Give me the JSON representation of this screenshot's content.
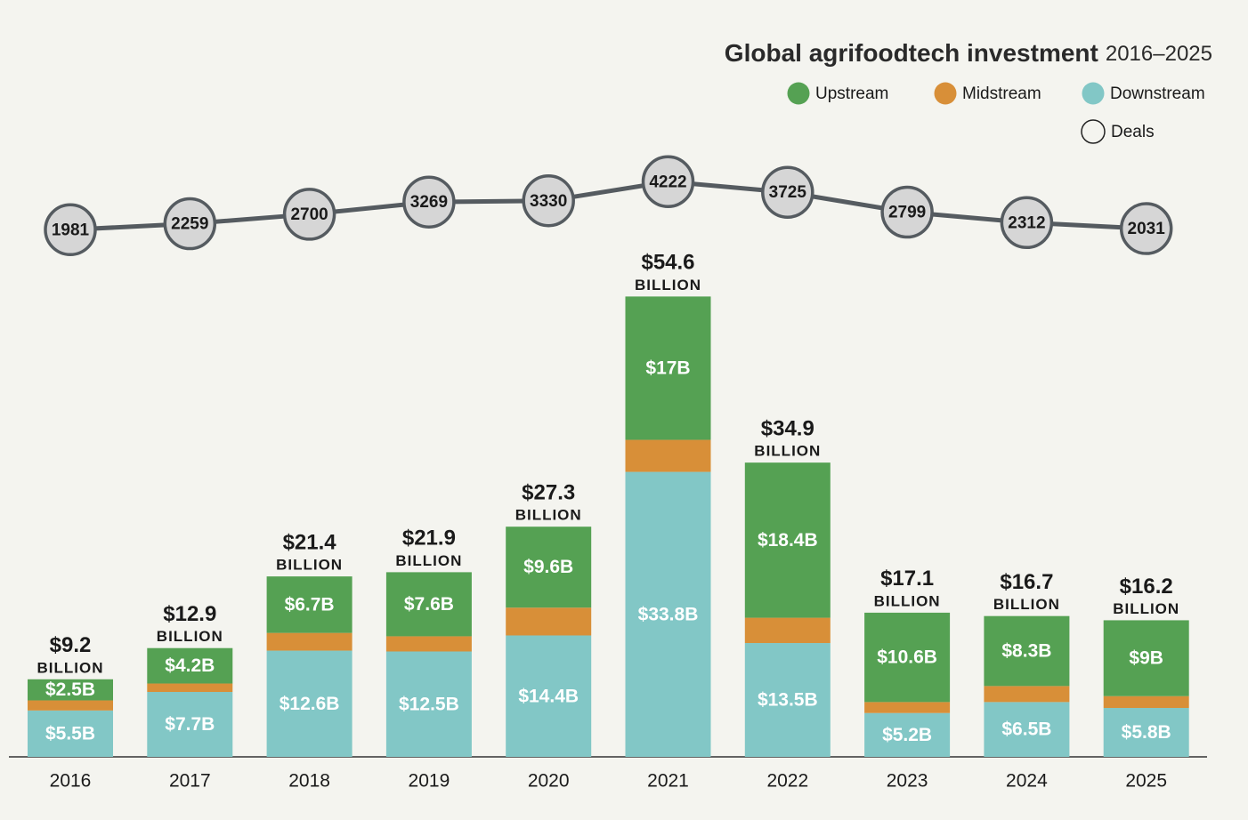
{
  "chart_data": {
    "type": "stacked_bar_line",
    "title": "Global agrifoodtech investment",
    "subtitle": "2016–2025",
    "categories": [
      "2016",
      "2017",
      "2018",
      "2019",
      "2020",
      "2021",
      "2022",
      "2023",
      "2024",
      "2025"
    ],
    "series": [
      {
        "name": "Downstream",
        "color": "#82c7c6",
        "values": [
          5.5,
          7.7,
          12.6,
          12.5,
          14.4,
          33.8,
          13.5,
          5.2,
          6.5,
          5.8
        ],
        "value_labels": [
          "$5.5B",
          "$7.7B",
          "$12.6B",
          "$12.5B",
          "$14.4B",
          "$33.8B",
          "$13.5B",
          "$5.2B",
          "$6.5B",
          "$5.8B"
        ]
      },
      {
        "name": "Midstream",
        "color": "#d88f38",
        "values": [
          1.2,
          1.0,
          2.1,
          1.8,
          3.3,
          3.8,
          3.0,
          1.3,
          1.9,
          1.4
        ]
      },
      {
        "name": "Upstream",
        "color": "#55a153",
        "values": [
          2.5,
          4.2,
          6.7,
          7.6,
          9.6,
          17,
          18.4,
          10.6,
          8.3,
          9
        ],
        "value_labels": [
          "$2.5B",
          "$4.2B",
          "$6.7B",
          "$7.6B",
          "$9.6B",
          "$17B",
          "$18.4B",
          "$10.6B",
          "$8.3B",
          "$9B"
        ]
      }
    ],
    "totals": {
      "values": [
        9.2,
        12.9,
        21.4,
        21.9,
        27.3,
        54.6,
        34.9,
        17.1,
        16.7,
        16.2
      ],
      "value_labels": [
        "$9.2",
        "$12.9",
        "$21.4",
        "$21.9",
        "$27.3",
        "$54.6",
        "$34.9",
        "$17.1",
        "$16.7",
        "$16.2"
      ],
      "unit": "BILLION"
    },
    "deals": {
      "name": "Deals",
      "color": "#555b60",
      "values": [
        1981,
        2259,
        2700,
        3269,
        3330,
        4222,
        3725,
        2799,
        2312,
        2031
      ]
    }
  }
}
